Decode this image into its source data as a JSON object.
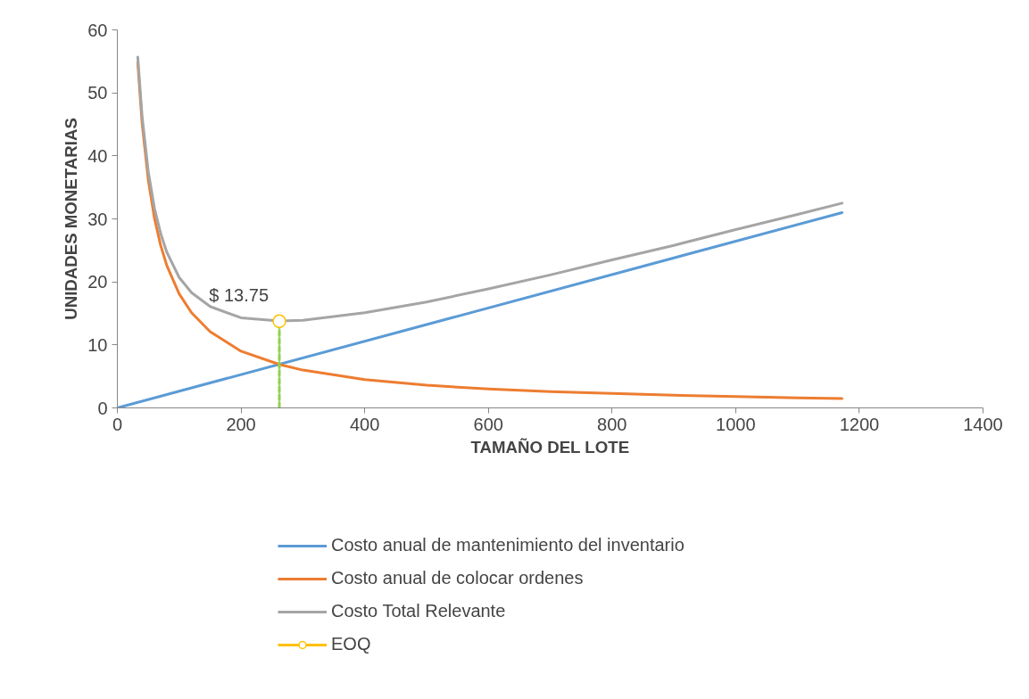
{
  "chart_data": {
    "type": "line",
    "xlabel": "TAMAÑO DEL LOTE",
    "ylabel": "UNIDADES MONETARIAS",
    "xlim": [
      0,
      1400
    ],
    "xticks": [
      0,
      200,
      400,
      600,
      800,
      1000,
      1200,
      1400
    ],
    "ylim": [
      0,
      60
    ],
    "yticks": [
      0,
      10,
      20,
      30,
      40,
      50,
      60
    ],
    "grid": false,
    "legend": "bottom",
    "marker": "none",
    "line_style": "solid",
    "series": [
      {
        "name": "Costo anual de mantenimiento del inventario",
        "color": "#5b9bd5",
        "x": [
          0,
          1172
        ],
        "values": [
          0,
          31.0
        ]
      },
      {
        "name": "Costo anual de colocar ordenes",
        "color": "#ed7d31",
        "x": [
          33,
          40,
          50,
          60,
          70,
          80,
          100,
          120,
          150,
          200,
          262,
          300,
          400,
          500,
          600,
          700,
          800,
          900,
          1000,
          1100,
          1172
        ],
        "values": [
          54.8,
          45.2,
          36.2,
          30.1,
          25.8,
          22.6,
          18.1,
          15.1,
          12.1,
          9.0,
          6.9,
          6.0,
          4.5,
          3.6,
          3.0,
          2.6,
          2.3,
          2.0,
          1.8,
          1.6,
          1.5
        ]
      },
      {
        "name": "Costo Total Relevante",
        "color": "#a5a5a5",
        "x": [
          33,
          40,
          50,
          60,
          70,
          80,
          100,
          120,
          150,
          200,
          262,
          300,
          400,
          500,
          600,
          700,
          800,
          900,
          1000,
          1100,
          1172
        ],
        "values": [
          55.7,
          46.3,
          37.5,
          31.7,
          27.7,
          24.7,
          20.7,
          18.3,
          16.1,
          14.3,
          13.8,
          13.9,
          15.1,
          16.8,
          18.9,
          21.1,
          23.5,
          25.8,
          28.3,
          30.7,
          32.5
        ]
      },
      {
        "type": "line",
        "color": "#92d050",
        "line_style": "dashed",
        "x": [
          262,
          262
        ],
        "values": [
          0,
          13.75
        ]
      },
      {
        "name": "EOQ",
        "type": "scatter",
        "marker": "circle",
        "color": "#ffc000",
        "x": [
          262
        ],
        "values": [
          13.75
        ],
        "value_labels": [
          "$ 13.75"
        ]
      }
    ]
  }
}
